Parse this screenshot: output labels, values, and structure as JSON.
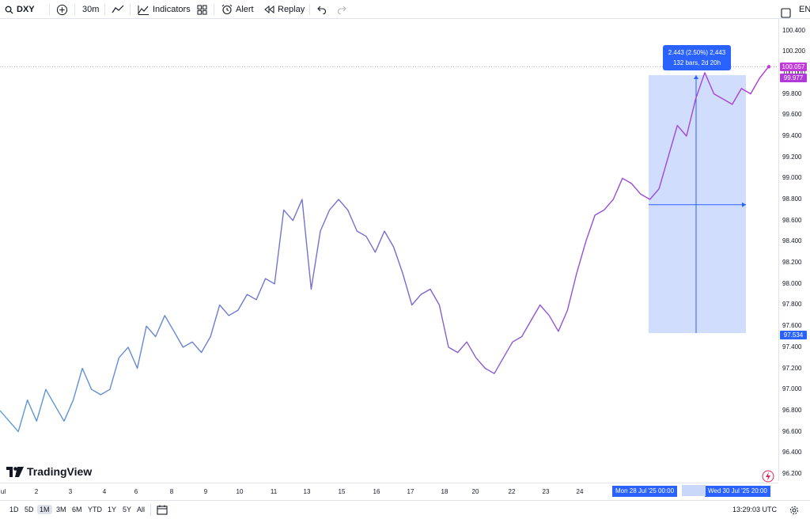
{
  "toolbar": {
    "symbol": "DXY",
    "interval": "30m",
    "indicators_label": "Indicators",
    "alert_label": "Alert",
    "replay_label": "Replay",
    "language_label": "EN"
  },
  "logo_text": "TradingView",
  "price_axis": {
    "ticks": [
      "100.400",
      "100.200",
      "100.000",
      "99.800",
      "99.600",
      "99.400",
      "99.200",
      "99.000",
      "98.800",
      "98.600",
      "98.400",
      "98.200",
      "98.000",
      "97.800",
      "97.600",
      "97.400",
      "97.200",
      "97.000",
      "96.800",
      "96.600",
      "96.400",
      "96.200"
    ],
    "last_price": "100.057",
    "crosshair_price": "99.977",
    "measure_low_price": "97.534"
  },
  "measure": {
    "line1": "2.443 (2.50%) 2,443",
    "line2": "132 bars, 2d 20h"
  },
  "time_axis": {
    "ticks": [
      "ul",
      "2",
      "3",
      "4",
      "6",
      "8",
      "9",
      "10",
      "11",
      "13",
      "15",
      "16",
      "17",
      "18",
      "20",
      "22",
      "23",
      "24"
    ],
    "range_start": "Mon 28 Jul '25  00:00",
    "range_end": "Wed 30 Jul '25  20:00"
  },
  "bottombar": {
    "ranges": [
      "1D",
      "5D",
      "1M",
      "3M",
      "6M",
      "YTD",
      "1Y",
      "5Y",
      "All"
    ],
    "active_range": "1M",
    "clock": "13:29:03 UTC"
  },
  "colors": {
    "line_start": "#5b9bd5",
    "line_mid": "#7b68cf",
    "line_end": "#b03ad8",
    "accent": "#2962ff",
    "last_price": "#c039d9",
    "measure_fill": "#c9d7fb"
  },
  "chart_data": {
    "type": "line",
    "symbol": "DXY",
    "x_labels": [
      "ul",
      "2",
      "3",
      "4",
      "6",
      "8",
      "9",
      "10",
      "11",
      "13",
      "15",
      "16",
      "17",
      "18",
      "20",
      "22",
      "23",
      "24"
    ],
    "values": [
      96.8,
      96.7,
      96.6,
      96.9,
      96.7,
      97.0,
      96.85,
      96.7,
      96.9,
      97.2,
      97.0,
      96.95,
      97.0,
      97.3,
      97.4,
      97.2,
      97.6,
      97.5,
      97.7,
      97.55,
      97.4,
      97.45,
      97.35,
      97.5,
      97.8,
      97.7,
      97.75,
      97.9,
      97.85,
      98.05,
      98.0,
      98.7,
      98.6,
      98.8,
      97.95,
      98.5,
      98.7,
      98.8,
      98.7,
      98.5,
      98.45,
      98.3,
      98.5,
      98.35,
      98.1,
      97.8,
      97.9,
      97.95,
      97.8,
      97.4,
      97.35,
      97.45,
      97.3,
      97.2,
      97.15,
      97.3,
      97.45,
      97.5,
      97.65,
      97.8,
      97.7,
      97.55,
      97.75,
      98.1,
      98.4,
      98.65,
      98.7,
      98.8,
      99.0,
      98.95,
      98.85,
      98.8,
      98.9,
      99.2,
      99.5,
      99.4,
      99.75,
      100.0,
      99.8,
      99.75,
      99.7,
      99.85,
      99.8,
      99.95,
      100.06
    ],
    "ylim": [
      96.2,
      100.4
    ],
    "last_value": 100.057,
    "measurement": {
      "from": 97.534,
      "change": 2.443,
      "change_pct": 2.5,
      "bars": 132,
      "duration": "2d 20h"
    }
  }
}
